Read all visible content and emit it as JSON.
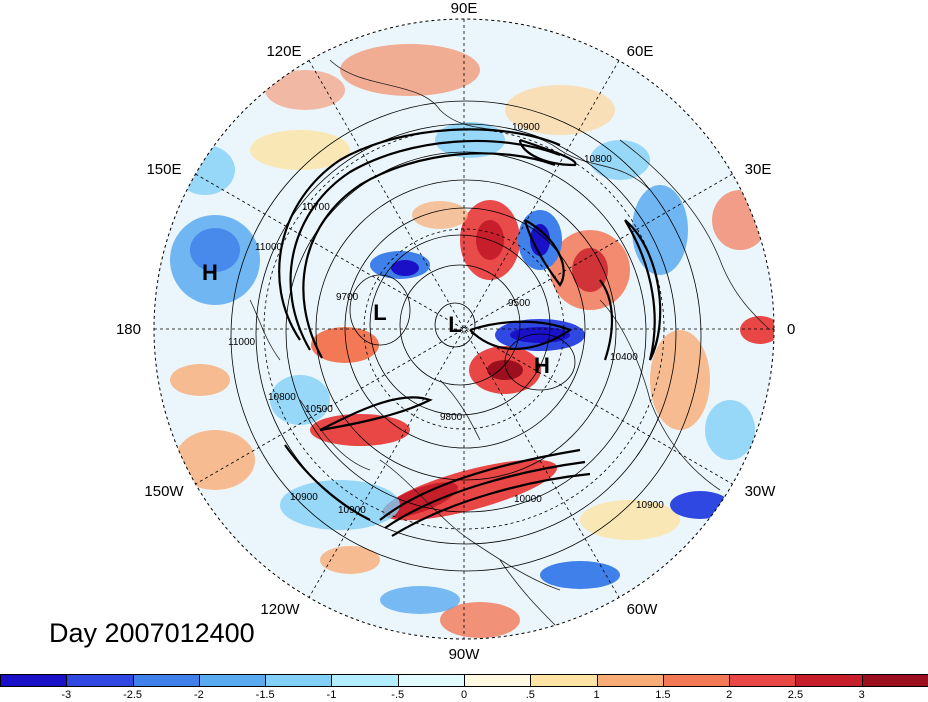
{
  "title": "Day 2007012400",
  "longitude_labels": [
    {
      "id": "lon-90e",
      "text": "90E"
    },
    {
      "id": "lon-60e",
      "text": "60E"
    },
    {
      "id": "lon-30e",
      "text": "30E"
    },
    {
      "id": "lon-0",
      "text": "0"
    },
    {
      "id": "lon-30w",
      "text": "30W"
    },
    {
      "id": "lon-60w",
      "text": "60W"
    },
    {
      "id": "lon-90w",
      "text": "90W"
    },
    {
      "id": "lon-120w",
      "text": "120W"
    },
    {
      "id": "lon-150w",
      "text": "150W"
    },
    {
      "id": "lon-180",
      "text": "180"
    },
    {
      "id": "lon-150e",
      "text": "150E"
    },
    {
      "id": "lon-120e",
      "text": "120E"
    }
  ],
  "pressure_markers": [
    {
      "id": "marker-h-pacific",
      "text": "H"
    },
    {
      "id": "marker-l-west",
      "text": "L"
    },
    {
      "id": "marker-l-pole",
      "text": "L"
    },
    {
      "id": "marker-h-europe",
      "text": "H"
    }
  ],
  "contour_labels": [
    "10900",
    "10800",
    "11000",
    "11000",
    "10800",
    "10500",
    "9700",
    "9500",
    "9800",
    "10400",
    "10700",
    "10900",
    "10000",
    "10900",
    "10900"
  ],
  "colorbar": {
    "colors": [
      "#1a10c8",
      "#2f48e2",
      "#3f80ea",
      "#5aaaf0",
      "#82d0f8",
      "#b4eefe",
      "#e2fbff",
      "#fff9e1",
      "#fde4a4",
      "#f9ad76",
      "#f37856",
      "#e94646",
      "#c71e2c",
      "#9c0f1e"
    ],
    "labels": [
      "-3",
      "-2.5",
      "-2",
      "-1.5",
      "-1",
      "-.5",
      "0",
      ".5",
      "1",
      "1.5",
      "2",
      "2.5",
      "3"
    ]
  }
}
